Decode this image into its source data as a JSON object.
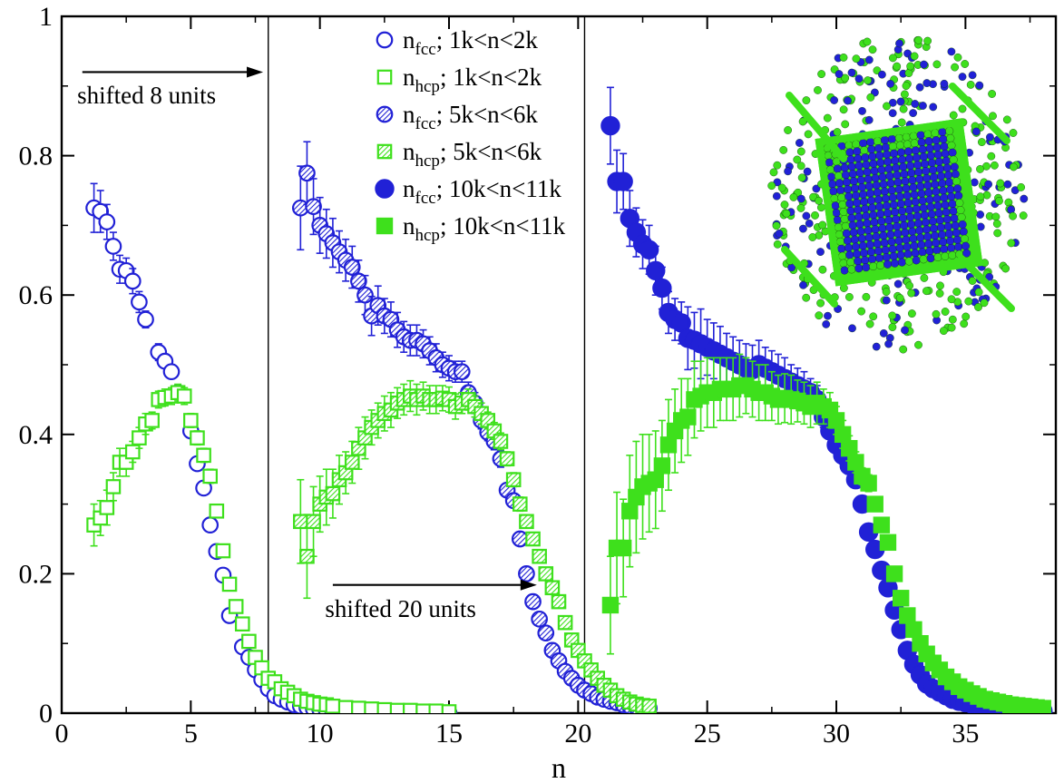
{
  "chart_data": {
    "type": "scatter",
    "xlabel": "n",
    "ylabel": "",
    "xlim": [
      0,
      38.5
    ],
    "ylim": [
      0,
      1
    ],
    "x_ticks": [
      0,
      5,
      10,
      15,
      20,
      25,
      30,
      35
    ],
    "y_ticks": [
      0,
      0.2,
      0.4,
      0.6,
      0.8,
      1
    ],
    "y_tick_labels": [
      "0",
      "0.2",
      "0.4",
      "0.6",
      "0.8",
      "1"
    ],
    "legend_position": "top-center",
    "vertical_lines": [
      8,
      20.25
    ],
    "annotations": [
      {
        "text": "shifted 8 units",
        "arrow_from": [
          0.8,
          0.92
        ],
        "arrow_to": [
          7.8,
          0.92
        ],
        "label_at": [
          0.6,
          0.875
        ]
      },
      {
        "text": "shifted 20 units",
        "arrow_from": [
          10.5,
          0.184
        ],
        "arrow_to": [
          18.4,
          0.184
        ],
        "label_at": [
          10.2,
          0.138
        ]
      }
    ],
    "colors": {
      "fcc": "#2121d6",
      "hcp": "#3ee01c"
    },
    "series": [
      {
        "name": "n_fcc; 1k<n<2k",
        "main": "n",
        "sub": "fcc",
        "tail": "; 1k<n<2k",
        "marker": "circle-open",
        "color": "#2121d6",
        "x": [
          1.25,
          1.5,
          1.75,
          2.0,
          2.25,
          2.5,
          2.75,
          3.0,
          3.25,
          3.75,
          4.0,
          4.25,
          4.5,
          5.0,
          5.25,
          5.5,
          5.75,
          6.0,
          6.25,
          6.5,
          7.0,
          7.25,
          7.5,
          7.75,
          8.0,
          8.25,
          8.5,
          8.75,
          9.0,
          9.25,
          9.5,
          9.75,
          10.0,
          10.25,
          10.5,
          10.75,
          11.0,
          11.5,
          12.0,
          12.5,
          13.0,
          13.5,
          14.0,
          14.5,
          15.0
        ],
        "y": [
          0.725,
          0.72,
          0.705,
          0.67,
          0.637,
          0.635,
          0.62,
          0.59,
          0.565,
          0.518,
          0.505,
          0.49,
          0.46,
          0.405,
          0.358,
          0.323,
          0.27,
          0.232,
          0.198,
          0.14,
          0.095,
          0.08,
          0.062,
          0.048,
          0.035,
          0.025,
          0.02,
          0.016,
          0.012,
          0.01,
          0.008,
          0.006,
          0.005,
          0.004,
          0.003,
          0.003,
          0.002,
          0.002,
          0.001,
          0.001,
          0.001,
          0.001,
          0.0,
          0.0,
          0.0
        ],
        "err": [
          0.035,
          0.03,
          0.025,
          0.02,
          0.02,
          0.018,
          0.018,
          0.015,
          0.012,
          0.012,
          0.01,
          0.01,
          0.01,
          0.008,
          0.008,
          0.008,
          0.008,
          0.008,
          0.008,
          0.006,
          0.005,
          0.004,
          0.003,
          0.003,
          0.003,
          0,
          0,
          0,
          0,
          0,
          0,
          0,
          0,
          0,
          0,
          0,
          0,
          0,
          0,
          0,
          0,
          0,
          0,
          0,
          0
        ]
      },
      {
        "name": "n_hcp; 1k<n<2k",
        "main": "n",
        "sub": "hcp",
        "tail": "; 1k<n<2k",
        "marker": "square-open",
        "color": "#3ee01c",
        "x": [
          1.25,
          1.5,
          1.75,
          2.0,
          2.25,
          2.5,
          2.75,
          3.0,
          3.25,
          3.5,
          3.75,
          4.0,
          4.25,
          4.5,
          4.75,
          5.0,
          5.25,
          5.5,
          5.75,
          6.0,
          6.25,
          6.5,
          6.75,
          7.0,
          7.25,
          7.5,
          7.75,
          8.0,
          8.25,
          8.5,
          8.75,
          9.0,
          9.25,
          9.5,
          9.75,
          10.0,
          10.25,
          10.5,
          11.0,
          11.5,
          12.0,
          12.5,
          13.0,
          13.5,
          14.0,
          14.5,
          15.0
        ],
        "y": [
          0.27,
          0.28,
          0.295,
          0.325,
          0.36,
          0.36,
          0.375,
          0.395,
          0.415,
          0.42,
          0.45,
          0.453,
          0.455,
          0.46,
          0.455,
          0.42,
          0.395,
          0.37,
          0.34,
          0.29,
          0.233,
          0.185,
          0.153,
          0.128,
          0.103,
          0.08,
          0.065,
          0.05,
          0.045,
          0.035,
          0.03,
          0.025,
          0.02,
          0.017,
          0.015,
          0.013,
          0.012,
          0.01,
          0.008,
          0.007,
          0.006,
          0.005,
          0.004,
          0.004,
          0.003,
          0.003,
          0.002
        ],
        "err": [
          0.03,
          0.025,
          0.025,
          0.02,
          0.02,
          0.02,
          0.015,
          0.015,
          0.015,
          0.012,
          0.012,
          0.012,
          0.012,
          0.012,
          0.012,
          0.01,
          0.01,
          0.01,
          0.01,
          0.008,
          0.006,
          0.006,
          0.005,
          0.005,
          0.004,
          0.003,
          0,
          0,
          0,
          0,
          0,
          0,
          0,
          0,
          0,
          0,
          0,
          0,
          0,
          0,
          0,
          0,
          0,
          0,
          0,
          0,
          0
        ]
      },
      {
        "name": "n_fcc; 5k<n<6k",
        "main": "n",
        "sub": "fcc",
        "tail": "; 5k<n<6k",
        "marker": "circle-hatched",
        "color": "#2121d6",
        "x": [
          9.25,
          9.5,
          9.75,
          10.0,
          10.25,
          10.5,
          10.75,
          11.0,
          11.25,
          11.5,
          11.75,
          12.0,
          12.25,
          12.5,
          12.75,
          13.0,
          13.25,
          13.5,
          13.75,
          14.0,
          14.25,
          14.5,
          14.75,
          15.0,
          15.25,
          15.5,
          15.75,
          16.0,
          16.25,
          16.5,
          16.75,
          17.0,
          17.25,
          17.5,
          17.75,
          18.0,
          18.25,
          18.5,
          18.75,
          19.0,
          19.25,
          19.5,
          19.75,
          20.0,
          20.25,
          20.5,
          20.75,
          21.0,
          21.25,
          21.5,
          21.75,
          22.0,
          22.25,
          22.5,
          22.75
        ],
        "y": [
          0.725,
          0.775,
          0.727,
          0.7,
          0.688,
          0.675,
          0.662,
          0.65,
          0.64,
          0.62,
          0.6,
          0.57,
          0.585,
          0.57,
          0.565,
          0.55,
          0.54,
          0.535,
          0.535,
          0.53,
          0.52,
          0.51,
          0.5,
          0.495,
          0.49,
          0.49,
          0.46,
          0.445,
          0.42,
          0.403,
          0.39,
          0.365,
          0.32,
          0.305,
          0.25,
          0.2,
          0.16,
          0.135,
          0.115,
          0.09,
          0.075,
          0.06,
          0.05,
          0.04,
          0.033,
          0.028,
          0.023,
          0.02,
          0.017,
          0.015,
          0.012,
          0.01,
          0.009,
          0.008,
          0.007
        ],
        "err": [
          0.06,
          0.045,
          0.04,
          0.04,
          0.035,
          0.035,
          0.03,
          0.03,
          0.03,
          0.03,
          0.028,
          0.028,
          0.028,
          0.025,
          0.025,
          0.025,
          0.022,
          0.022,
          0.022,
          0.02,
          0.02,
          0.02,
          0.018,
          0.018,
          0.015,
          0.015,
          0.015,
          0.015,
          0.012,
          0.012,
          0.012,
          0.012,
          0.01,
          0.01,
          0.008,
          0.008,
          0.006,
          0.006,
          0.005,
          0.005,
          0.004,
          0.004,
          0.003,
          0.003,
          0.003,
          0,
          0,
          0,
          0,
          0,
          0,
          0,
          0,
          0,
          0
        ]
      },
      {
        "name": "n_hcp; 5k<n<6k",
        "main": "n",
        "sub": "hcp",
        "tail": "; 5k<n<6k",
        "marker": "square-hatched",
        "color": "#3ee01c",
        "x": [
          9.25,
          9.5,
          9.75,
          10.0,
          10.25,
          10.5,
          10.75,
          11.0,
          11.25,
          11.5,
          11.75,
          12.0,
          12.25,
          12.5,
          12.75,
          13.0,
          13.25,
          13.5,
          13.75,
          14.0,
          14.25,
          14.5,
          14.75,
          15.0,
          15.25,
          15.5,
          15.75,
          16.0,
          16.25,
          16.5,
          16.75,
          17.0,
          17.25,
          17.5,
          17.75,
          18.0,
          18.25,
          18.5,
          18.75,
          19.0,
          19.25,
          19.5,
          19.75,
          20.0,
          20.25,
          20.5,
          20.75,
          21.0,
          21.25,
          21.5,
          21.75,
          22.0,
          22.25,
          22.5,
          22.75
        ],
        "y": [
          0.275,
          0.225,
          0.275,
          0.3,
          0.31,
          0.315,
          0.335,
          0.345,
          0.36,
          0.38,
          0.395,
          0.41,
          0.42,
          0.43,
          0.435,
          0.445,
          0.45,
          0.455,
          0.45,
          0.455,
          0.45,
          0.45,
          0.452,
          0.45,
          0.44,
          0.445,
          0.45,
          0.44,
          0.43,
          0.42,
          0.405,
          0.39,
          0.365,
          0.335,
          0.3,
          0.275,
          0.25,
          0.225,
          0.2,
          0.18,
          0.16,
          0.13,
          0.105,
          0.09,
          0.075,
          0.062,
          0.05,
          0.04,
          0.033,
          0.025,
          0.02,
          0.016,
          0.013,
          0.011,
          0.01
        ],
        "err": [
          0.06,
          0.06,
          0.05,
          0.04,
          0.04,
          0.035,
          0.035,
          0.03,
          0.03,
          0.03,
          0.03,
          0.025,
          0.025,
          0.025,
          0.025,
          0.022,
          0.022,
          0.022,
          0.022,
          0.02,
          0.02,
          0.02,
          0.018,
          0.018,
          0.018,
          0.015,
          0.015,
          0.015,
          0.015,
          0.012,
          0.012,
          0.012,
          0.01,
          0.01,
          0.01,
          0.008,
          0.008,
          0.008,
          0.006,
          0.006,
          0.005,
          0.005,
          0.004,
          0.004,
          0.004,
          0,
          0,
          0,
          0,
          0,
          0,
          0,
          0,
          0,
          0
        ]
      },
      {
        "name": "n_fcc; 10k<n<11k",
        "main": "n",
        "sub": "fcc",
        "tail": "; 10k<n<11k",
        "marker": "circle-filled",
        "color": "#2121d6",
        "x": [
          21.25,
          21.5,
          21.75,
          22.0,
          22.25,
          22.5,
          22.75,
          23.0,
          23.25,
          23.5,
          23.75,
          24.0,
          24.25,
          24.5,
          24.75,
          25.0,
          25.25,
          25.5,
          25.75,
          26.0,
          26.25,
          26.5,
          26.75,
          27.0,
          27.25,
          27.5,
          27.75,
          28.0,
          28.25,
          28.5,
          28.75,
          29.0,
          29.25,
          29.5,
          29.75,
          30.0,
          30.25,
          30.5,
          30.75,
          31.0,
          31.25,
          31.5,
          31.75,
          32.0,
          32.25,
          32.5,
          32.75,
          33.0,
          33.25,
          33.5,
          33.75,
          34.0,
          34.25,
          34.5,
          34.75,
          35.0,
          35.25,
          35.5,
          35.75,
          36.0,
          36.25,
          36.5,
          36.75,
          37.0,
          37.25,
          37.5,
          37.75,
          38.0
        ],
        "y": [
          0.843,
          0.763,
          0.763,
          0.71,
          0.69,
          0.673,
          0.665,
          0.635,
          0.61,
          0.575,
          0.565,
          0.56,
          0.538,
          0.535,
          0.53,
          0.525,
          0.52,
          0.515,
          0.51,
          0.505,
          0.5,
          0.495,
          0.493,
          0.5,
          0.495,
          0.49,
          0.485,
          0.48,
          0.475,
          0.47,
          0.465,
          0.46,
          0.45,
          0.425,
          0.405,
          0.385,
          0.37,
          0.355,
          0.335,
          0.3,
          0.26,
          0.235,
          0.205,
          0.18,
          0.148,
          0.12,
          0.09,
          0.07,
          0.055,
          0.042,
          0.035,
          0.03,
          0.025,
          0.02,
          0.017,
          0.015,
          0.013,
          0.011,
          0.01,
          0.009,
          0.008,
          0.007,
          0.006,
          0.005,
          0.004,
          0.004,
          0.003,
          0.003
        ],
        "err": [
          0.055,
          0.045,
          0.04,
          0.04,
          0.035,
          0.035,
          0.035,
          0.035,
          0.03,
          0.03,
          0.03,
          0.03,
          0.045,
          0.04,
          0.05,
          0.04,
          0.04,
          0.04,
          0.035,
          0.035,
          0.035,
          0.035,
          0.035,
          0.035,
          0.03,
          0.03,
          0.03,
          0.03,
          0.025,
          0.025,
          0.025,
          0.02,
          0.02,
          0.015,
          0.012,
          0.012,
          0.012,
          0.012,
          0.01,
          0.01,
          0.008,
          0.008,
          0.008,
          0.008,
          0.006,
          0.006,
          0.005,
          0.005,
          0.004,
          0.004,
          0,
          0,
          0,
          0,
          0,
          0,
          0,
          0,
          0,
          0,
          0,
          0,
          0,
          0,
          0,
          0,
          0,
          0
        ]
      },
      {
        "name": "n_hcp; 10k<n<11k",
        "main": "n",
        "sub": "hcp",
        "tail": "; 10k<n<11k",
        "marker": "square-filled",
        "color": "#3ee01c",
        "x": [
          21.25,
          21.5,
          21.75,
          22.0,
          22.25,
          22.5,
          22.75,
          23.0,
          23.25,
          23.5,
          23.75,
          24.0,
          24.25,
          24.5,
          24.75,
          25.0,
          25.25,
          25.5,
          25.75,
          26.0,
          26.25,
          26.5,
          26.75,
          27.0,
          27.25,
          27.5,
          27.75,
          28.0,
          28.25,
          28.5,
          28.75,
          29.0,
          29.25,
          29.5,
          29.75,
          30.0,
          30.25,
          30.5,
          30.75,
          31.0,
          31.25,
          31.5,
          31.75,
          32.0,
          32.25,
          32.5,
          32.75,
          33.0,
          33.25,
          33.5,
          33.75,
          34.0,
          34.25,
          34.5,
          34.75,
          35.0,
          35.25,
          35.5,
          35.75,
          36.0,
          36.25,
          36.5,
          36.75,
          37.0,
          37.25,
          37.5,
          37.75,
          38.0
        ],
        "y": [
          0.155,
          0.237,
          0.237,
          0.29,
          0.31,
          0.325,
          0.33,
          0.335,
          0.355,
          0.385,
          0.405,
          0.42,
          0.425,
          0.45,
          0.455,
          0.46,
          0.46,
          0.465,
          0.465,
          0.465,
          0.47,
          0.47,
          0.465,
          0.46,
          0.46,
          0.455,
          0.45,
          0.452,
          0.45,
          0.448,
          0.445,
          0.44,
          0.445,
          0.44,
          0.435,
          0.42,
          0.4,
          0.38,
          0.36,
          0.34,
          0.33,
          0.3,
          0.27,
          0.245,
          0.2,
          0.165,
          0.14,
          0.12,
          0.1,
          0.085,
          0.072,
          0.062,
          0.052,
          0.045,
          0.038,
          0.033,
          0.028,
          0.024,
          0.02,
          0.018,
          0.016,
          0.014,
          0.012,
          0.011,
          0.01,
          0.009,
          0.008,
          0.007
        ],
        "err": [
          0.07,
          0.08,
          0.07,
          0.08,
          0.08,
          0.075,
          0.07,
          0.07,
          0.065,
          0.065,
          0.06,
          0.06,
          0.055,
          0.055,
          0.05,
          0.05,
          0.05,
          0.045,
          0.045,
          0.045,
          0.045,
          0.04,
          0.04,
          0.04,
          0.04,
          0.035,
          0.035,
          0.035,
          0.035,
          0.03,
          0.03,
          0.03,
          0.03,
          0.025,
          0.025,
          0.02,
          0.02,
          0.018,
          0.015,
          0.012,
          0.012,
          0.01,
          0.01,
          0.008,
          0.008,
          0.006,
          0.006,
          0.005,
          0.005,
          0.004,
          0,
          0,
          0,
          0,
          0,
          0,
          0,
          0,
          0,
          0,
          0,
          0,
          0,
          0,
          0,
          0,
          0,
          0
        ]
      }
    ]
  },
  "inset": {
    "description": "",
    "colors": [
      "#2121d6",
      "#3ee01c"
    ]
  }
}
